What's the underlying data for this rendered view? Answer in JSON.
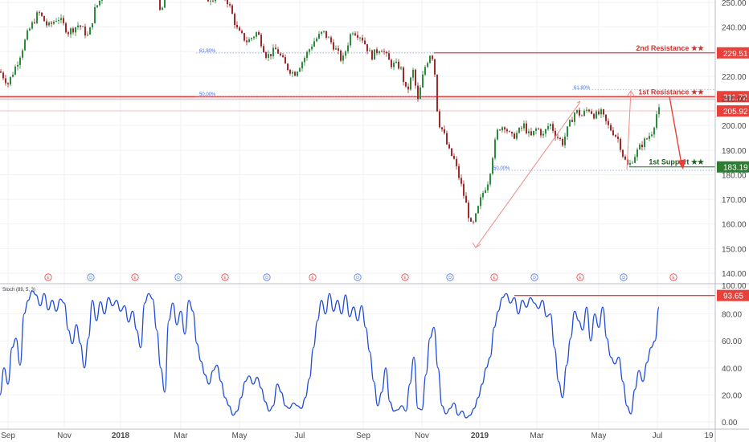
{
  "chart_data": [
    {
      "type": "candlestick",
      "panel": "price",
      "y_axis_ticks": [
        250,
        240,
        230,
        220,
        210,
        200,
        190,
        180,
        170,
        160,
        150,
        140
      ],
      "ylim": [
        138,
        252
      ],
      "x_axis_labels": [
        "Sep",
        "Nov",
        "2018",
        "Mar",
        "May",
        "Jul",
        "Sep",
        "Nov",
        "2019",
        "Mar",
        "May",
        "Jul",
        "19"
      ],
      "bold_x_labels": [
        "2018",
        "2019"
      ],
      "price_path": [
        {
          "x": 0,
          "y": 222
        },
        {
          "x": 10,
          "y": 217
        },
        {
          "x": 22,
          "y": 226
        },
        {
          "x": 35,
          "y": 238
        },
        {
          "x": 48,
          "y": 246
        },
        {
          "x": 60,
          "y": 240
        },
        {
          "x": 72,
          "y": 244
        },
        {
          "x": 85,
          "y": 238
        },
        {
          "x": 98,
          "y": 241
        },
        {
          "x": 110,
          "y": 236
        },
        {
          "x": 118,
          "y": 247
        },
        {
          "x": 126,
          "y": 252
        },
        {
          "x": 132,
          "y": 259
        },
        {
          "x": 180,
          "y": 258
        },
        {
          "x": 186,
          "y": 251
        },
        {
          "x": 192,
          "y": 256
        },
        {
          "x": 200,
          "y": 245
        },
        {
          "x": 208,
          "y": 256
        },
        {
          "x": 250,
          "y": 257
        },
        {
          "x": 262,
          "y": 250
        },
        {
          "x": 274,
          "y": 255
        },
        {
          "x": 284,
          "y": 250
        },
        {
          "x": 296,
          "y": 238
        },
        {
          "x": 308,
          "y": 234
        },
        {
          "x": 320,
          "y": 238
        },
        {
          "x": 332,
          "y": 228
        },
        {
          "x": 344,
          "y": 231
        },
        {
          "x": 356,
          "y": 224
        },
        {
          "x": 366,
          "y": 221
        },
        {
          "x": 378,
          "y": 227
        },
        {
          "x": 390,
          "y": 234
        },
        {
          "x": 402,
          "y": 238
        },
        {
          "x": 414,
          "y": 233
        },
        {
          "x": 426,
          "y": 226
        },
        {
          "x": 438,
          "y": 239
        },
        {
          "x": 450,
          "y": 236
        },
        {
          "x": 462,
          "y": 228
        },
        {
          "x": 474,
          "y": 232
        },
        {
          "x": 486,
          "y": 225
        },
        {
          "x": 498,
          "y": 224
        },
        {
          "x": 506,
          "y": 213
        },
        {
          "x": 514,
          "y": 222
        },
        {
          "x": 520,
          "y": 210
        },
        {
          "x": 528,
          "y": 223
        },
        {
          "x": 536,
          "y": 230
        },
        {
          "x": 540,
          "y": 226
        },
        {
          "x": 545,
          "y": 202
        },
        {
          "x": 552,
          "y": 197
        },
        {
          "x": 558,
          "y": 190
        },
        {
          "x": 565,
          "y": 186
        },
        {
          "x": 572,
          "y": 178
        },
        {
          "x": 580,
          "y": 168
        },
        {
          "x": 587,
          "y": 158
        },
        {
          "x": 592,
          "y": 163
        },
        {
          "x": 600,
          "y": 172
        },
        {
          "x": 608,
          "y": 178
        },
        {
          "x": 614,
          "y": 190
        },
        {
          "x": 620,
          "y": 199
        },
        {
          "x": 628,
          "y": 200
        },
        {
          "x": 636,
          "y": 195
        },
        {
          "x": 644,
          "y": 197
        },
        {
          "x": 652,
          "y": 200
        },
        {
          "x": 660,
          "y": 195
        },
        {
          "x": 668,
          "y": 199
        },
        {
          "x": 676,
          "y": 196
        },
        {
          "x": 684,
          "y": 201
        },
        {
          "x": 692,
          "y": 196
        },
        {
          "x": 700,
          "y": 193
        },
        {
          "x": 708,
          "y": 200
        },
        {
          "x": 716,
          "y": 206
        },
        {
          "x": 724,
          "y": 204
        },
        {
          "x": 732,
          "y": 207
        },
        {
          "x": 740,
          "y": 204
        },
        {
          "x": 748,
          "y": 205
        },
        {
          "x": 756,
          "y": 200
        },
        {
          "x": 764,
          "y": 197
        },
        {
          "x": 770,
          "y": 194
        },
        {
          "x": 776,
          "y": 187
        },
        {
          "x": 782,
          "y": 183
        },
        {
          "x": 788,
          "y": 187
        },
        {
          "x": 794,
          "y": 190
        },
        {
          "x": 800,
          "y": 193
        },
        {
          "x": 806,
          "y": 195
        },
        {
          "x": 812,
          "y": 198
        },
        {
          "x": 818,
          "y": 206
        },
        {
          "x": 822,
          "y": 206
        }
      ],
      "levels": [
        {
          "label": "2nd Resistance ★★",
          "value": "229.51",
          "kind": "resistance"
        },
        {
          "label": "1st Resistance ★★",
          "value": "211.72",
          "kind": "resistance"
        },
        {
          "label": "1st Support ★★",
          "value": "183.19",
          "kind": "support"
        }
      ],
      "current_price": "205.92",
      "fib_labels": [
        "61.80%",
        "50.00%",
        "61.80%",
        "50.00%"
      ],
      "event_markers": [
        "E",
        "D",
        "E",
        "D",
        "E",
        "D",
        "E",
        "D",
        "E",
        "D",
        "E",
        "D",
        "E",
        "D",
        "E"
      ]
    },
    {
      "type": "line",
      "panel": "indicator",
      "indicator_label": "Stoch (89, 5, 3)",
      "y_axis_ticks": [
        "100.00",
        "80.00",
        "60.00",
        "40.00",
        "20.00",
        "0.00"
      ],
      "ylim": [
        -3,
        102
      ],
      "current_value": "93.65",
      "series": [
        {
          "color": "#1f4bd8",
          "points": [
            {
              "x": 0,
              "y": 20
            },
            {
              "x": 5,
              "y": 40
            },
            {
              "x": 10,
              "y": 28
            },
            {
              "x": 15,
              "y": 55
            },
            {
              "x": 20,
              "y": 62
            },
            {
              "x": 25,
              "y": 42
            },
            {
              "x": 30,
              "y": 80
            },
            {
              "x": 35,
              "y": 90
            },
            {
              "x": 40,
              "y": 97
            },
            {
              "x": 45,
              "y": 94
            },
            {
              "x": 50,
              "y": 86
            },
            {
              "x": 55,
              "y": 95
            },
            {
              "x": 60,
              "y": 83
            },
            {
              "x": 65,
              "y": 90
            },
            {
              "x": 70,
              "y": 82
            },
            {
              "x": 75,
              "y": 91
            },
            {
              "x": 80,
              "y": 88
            },
            {
              "x": 85,
              "y": 68
            },
            {
              "x": 90,
              "y": 58
            },
            {
              "x": 95,
              "y": 72
            },
            {
              "x": 100,
              "y": 58
            },
            {
              "x": 105,
              "y": 40
            },
            {
              "x": 110,
              "y": 62
            },
            {
              "x": 115,
              "y": 90
            },
            {
              "x": 120,
              "y": 75
            },
            {
              "x": 125,
              "y": 89
            },
            {
              "x": 130,
              "y": 80
            },
            {
              "x": 135,
              "y": 92
            },
            {
              "x": 140,
              "y": 86
            },
            {
              "x": 145,
              "y": 90
            },
            {
              "x": 150,
              "y": 82
            },
            {
              "x": 155,
              "y": 86
            },
            {
              "x": 160,
              "y": 74
            },
            {
              "x": 165,
              "y": 82
            },
            {
              "x": 170,
              "y": 68
            },
            {
              "x": 175,
              "y": 55
            },
            {
              "x": 180,
              "y": 88
            },
            {
              "x": 185,
              "y": 95
            },
            {
              "x": 190,
              "y": 91
            },
            {
              "x": 195,
              "y": 68
            },
            {
              "x": 200,
              "y": 40
            },
            {
              "x": 205,
              "y": 22
            },
            {
              "x": 210,
              "y": 75
            },
            {
              "x": 215,
              "y": 88
            },
            {
              "x": 220,
              "y": 72
            },
            {
              "x": 225,
              "y": 82
            },
            {
              "x": 230,
              "y": 65
            },
            {
              "x": 235,
              "y": 90
            },
            {
              "x": 240,
              "y": 82
            },
            {
              "x": 245,
              "y": 58
            },
            {
              "x": 250,
              "y": 45
            },
            {
              "x": 255,
              "y": 35
            },
            {
              "x": 260,
              "y": 28
            },
            {
              "x": 265,
              "y": 38
            },
            {
              "x": 270,
              "y": 42
            },
            {
              "x": 275,
              "y": 30
            },
            {
              "x": 280,
              "y": 18
            },
            {
              "x": 285,
              "y": 12
            },
            {
              "x": 290,
              "y": 5
            },
            {
              "x": 295,
              "y": 8
            },
            {
              "x": 300,
              "y": 18
            },
            {
              "x": 305,
              "y": 30
            },
            {
              "x": 310,
              "y": 34
            },
            {
              "x": 315,
              "y": 28
            },
            {
              "x": 320,
              "y": 33
            },
            {
              "x": 325,
              "y": 25
            },
            {
              "x": 330,
              "y": 15
            },
            {
              "x": 335,
              "y": 8
            },
            {
              "x": 340,
              "y": 12
            },
            {
              "x": 345,
              "y": 28
            },
            {
              "x": 350,
              "y": 22
            },
            {
              "x": 355,
              "y": 12
            },
            {
              "x": 360,
              "y": 10
            },
            {
              "x": 365,
              "y": 14
            },
            {
              "x": 370,
              "y": 12
            },
            {
              "x": 375,
              "y": 10
            },
            {
              "x": 380,
              "y": 18
            },
            {
              "x": 385,
              "y": 32
            },
            {
              "x": 390,
              "y": 55
            },
            {
              "x": 395,
              "y": 75
            },
            {
              "x": 400,
              "y": 90
            },
            {
              "x": 405,
              "y": 80
            },
            {
              "x": 410,
              "y": 95
            },
            {
              "x": 415,
              "y": 82
            },
            {
              "x": 420,
              "y": 90
            },
            {
              "x": 425,
              "y": 80
            },
            {
              "x": 430,
              "y": 94
            },
            {
              "x": 435,
              "y": 78
            },
            {
              "x": 440,
              "y": 85
            },
            {
              "x": 445,
              "y": 75
            },
            {
              "x": 450,
              "y": 86
            },
            {
              "x": 455,
              "y": 70
            },
            {
              "x": 460,
              "y": 52
            },
            {
              "x": 465,
              "y": 30
            },
            {
              "x": 470,
              "y": 12
            },
            {
              "x": 475,
              "y": 22
            },
            {
              "x": 480,
              "y": 40
            },
            {
              "x": 485,
              "y": 15
            },
            {
              "x": 490,
              "y": 8
            },
            {
              "x": 495,
              "y": 9
            },
            {
              "x": 500,
              "y": 12
            },
            {
              "x": 505,
              "y": 8
            },
            {
              "x": 510,
              "y": 28
            },
            {
              "x": 515,
              "y": 48
            },
            {
              "x": 520,
              "y": 10
            },
            {
              "x": 525,
              "y": 9
            },
            {
              "x": 530,
              "y": 35
            },
            {
              "x": 535,
              "y": 62
            },
            {
              "x": 540,
              "y": 70
            },
            {
              "x": 545,
              "y": 40
            },
            {
              "x": 550,
              "y": 12
            },
            {
              "x": 555,
              "y": 6
            },
            {
              "x": 560,
              "y": 10
            },
            {
              "x": 565,
              "y": 14
            },
            {
              "x": 570,
              "y": 5
            },
            {
              "x": 575,
              "y": 8
            },
            {
              "x": 580,
              "y": 3
            },
            {
              "x": 585,
              "y": 5
            },
            {
              "x": 590,
              "y": 10
            },
            {
              "x": 595,
              "y": 18
            },
            {
              "x": 600,
              "y": 28
            },
            {
              "x": 605,
              "y": 40
            },
            {
              "x": 610,
              "y": 48
            },
            {
              "x": 615,
              "y": 70
            },
            {
              "x": 620,
              "y": 82
            },
            {
              "x": 625,
              "y": 92
            },
            {
              "x": 630,
              "y": 95
            },
            {
              "x": 635,
              "y": 88
            },
            {
              "x": 640,
              "y": 92
            },
            {
              "x": 645,
              "y": 80
            },
            {
              "x": 650,
              "y": 90
            },
            {
              "x": 655,
              "y": 85
            },
            {
              "x": 660,
              "y": 92
            },
            {
              "x": 665,
              "y": 88
            },
            {
              "x": 670,
              "y": 84
            },
            {
              "x": 675,
              "y": 90
            },
            {
              "x": 680,
              "y": 78
            },
            {
              "x": 685,
              "y": 80
            },
            {
              "x": 690,
              "y": 55
            },
            {
              "x": 695,
              "y": 30
            },
            {
              "x": 700,
              "y": 18
            },
            {
              "x": 705,
              "y": 42
            },
            {
              "x": 710,
              "y": 62
            },
            {
              "x": 715,
              "y": 82
            },
            {
              "x": 720,
              "y": 75
            },
            {
              "x": 725,
              "y": 68
            },
            {
              "x": 730,
              "y": 85
            },
            {
              "x": 735,
              "y": 60
            },
            {
              "x": 740,
              "y": 80
            },
            {
              "x": 745,
              "y": 70
            },
            {
              "x": 750,
              "y": 85
            },
            {
              "x": 755,
              "y": 62
            },
            {
              "x": 760,
              "y": 48
            },
            {
              "x": 765,
              "y": 43
            },
            {
              "x": 770,
              "y": 48
            },
            {
              "x": 775,
              "y": 30
            },
            {
              "x": 780,
              "y": 12
            },
            {
              "x": 785,
              "y": 6
            },
            {
              "x": 790,
              "y": 24
            },
            {
              "x": 795,
              "y": 38
            },
            {
              "x": 800,
              "y": 30
            },
            {
              "x": 805,
              "y": 44
            },
            {
              "x": 810,
              "y": 55
            },
            {
              "x": 815,
              "y": 60
            },
            {
              "x": 820,
              "y": 85
            }
          ]
        }
      ]
    }
  ]
}
